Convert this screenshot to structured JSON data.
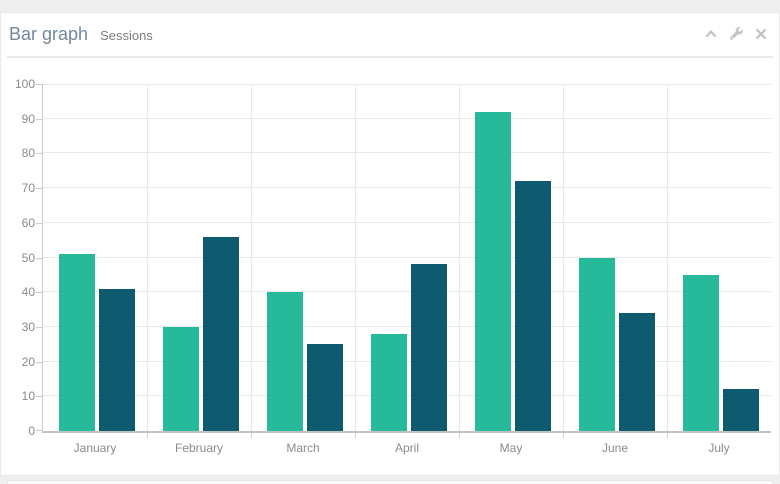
{
  "panel": {
    "title": "Bar graph",
    "subtitle": "Sessions",
    "toolbar": [
      {
        "label": "collapse",
        "icon": "chevron-up-icon"
      },
      {
        "label": "settings",
        "icon": "wrench-icon"
      },
      {
        "label": "close",
        "icon": "close-icon"
      }
    ]
  },
  "chart_data": {
    "type": "bar",
    "title": "Bar graph",
    "categories": [
      "January",
      "February",
      "March",
      "April",
      "May",
      "June",
      "July"
    ],
    "series": [
      {
        "name": "",
        "color": "#26B99A",
        "values": [
          51,
          30,
          40,
          28,
          92,
          50,
          45
        ]
      },
      {
        "name": "",
        "color": "#0E5A6E",
        "values": [
          41,
          56,
          25,
          48,
          72,
          34,
          12
        ]
      }
    ],
    "xlabel": "",
    "ylabel": "",
    "ylim": [
      0,
      100
    ],
    "y_ticks": [
      0,
      10,
      20,
      30,
      40,
      50,
      60,
      70,
      80,
      90,
      100
    ],
    "grid": true,
    "legend_position": "none"
  }
}
